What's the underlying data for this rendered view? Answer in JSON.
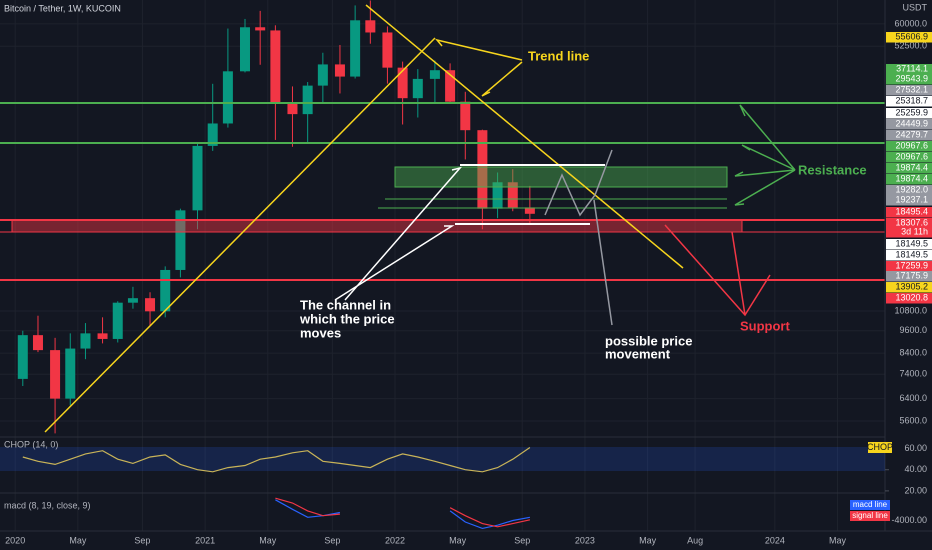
{
  "header": {
    "title": "Bitcoin / Tether, 1W, KUCOIN",
    "currency": "USDT"
  },
  "chart_data": {
    "type": "candlestick",
    "log_scale": true,
    "grid": true,
    "up_color": "#089981",
    "down_color": "#f23645",
    "x": [
      2020.04,
      2020.12,
      2020.21,
      2020.29,
      2020.37,
      2020.46,
      2020.54,
      2020.62,
      2020.71,
      2020.79,
      2020.87,
      2020.96,
      2021.04,
      2021.12,
      2021.21,
      2021.29,
      2021.37,
      2021.46,
      2021.54,
      2021.62,
      2021.71,
      2021.79,
      2021.87,
      2021.96,
      2022.04,
      2022.12,
      2022.21,
      2022.29,
      2022.37,
      2022.46,
      2022.54,
      2022.62,
      2022.71
    ],
    "open": [
      7200,
      9350,
      8550,
      6400,
      8630,
      9450,
      9140,
      11350,
      11660,
      10780,
      13800,
      19700,
      28950,
      33100,
      45200,
      58800,
      57700,
      37300,
      35000,
      41500,
      47100,
      43800,
      61300,
      57000,
      46200,
      38500,
      43200,
      45500,
      37700,
      31800,
      19900,
      23300,
      20050
    ],
    "high": [
      9600,
      10500,
      9200,
      9450,
      10050,
      10400,
      11450,
      12480,
      12080,
      14100,
      19900,
      29300,
      41950,
      58350,
      61800,
      64850,
      59500,
      41300,
      42400,
      50500,
      52900,
      67000,
      69000,
      59100,
      47900,
      45800,
      48200,
      47400,
      40000,
      31900,
      24700,
      25200,
      22800
    ],
    "low": [
      6900,
      8450,
      5200,
      6150,
      8100,
      8900,
      8950,
      10950,
      9900,
      10400,
      13200,
      17600,
      28100,
      32300,
      44900,
      47000,
      30000,
      28800,
      29300,
      37400,
      39600,
      43300,
      53300,
      42000,
      32900,
      34300,
      37200,
      37600,
      26700,
      17600,
      18800,
      19600,
      18150
    ],
    "close": [
      9350,
      8550,
      6400,
      8630,
      9450,
      9140,
      11350,
      11660,
      10780,
      13800,
      19700,
      28950,
      33100,
      45200,
      58800,
      57700,
      37300,
      35000,
      41500,
      47100,
      43800,
      61300,
      57000,
      46200,
      38500,
      43200,
      45500,
      37700,
      31800,
      19900,
      23300,
      20050,
      19300
    ],
    "xlim": [
      2019.92,
      2024.58
    ],
    "xticks": [
      2020,
      {
        "value": 2020.33,
        "label": "May"
      },
      {
        "value": 2020.67,
        "label": "Sep"
      },
      2021,
      {
        "value": 2021.33,
        "label": "May"
      },
      {
        "value": 2021.67,
        "label": "Sep"
      },
      2022,
      {
        "value": 2022.33,
        "label": "May"
      },
      {
        "value": 2022.67,
        "label": "Sep"
      },
      2023,
      {
        "value": 2023.33,
        "label": "May"
      },
      {
        "value": 2023.58,
        "label": "Aug"
      },
      2024,
      {
        "value": 2024.33,
        "label": "May"
      }
    ],
    "ylim": [
      5150,
      69200
    ],
    "yticks": [
      {
        "value": 60000,
        "label": "60000.0"
      },
      {
        "value": 52500,
        "label": "52500.0"
      },
      {
        "value": 10800,
        "label": "10800.0"
      },
      {
        "value": 9600,
        "label": "9600.0"
      },
      {
        "value": 8400,
        "label": "8400.0"
      },
      {
        "value": 7400,
        "label": "7400.0"
      },
      {
        "value": 6400,
        "label": "6400.0"
      },
      {
        "value": 5600,
        "label": "5600.0"
      }
    ],
    "price_labels": [
      {
        "value": 55606.9,
        "label": "55606.9",
        "color": "#f7d51d"
      },
      {
        "value": 37114.1,
        "label": "37114.1",
        "color": "#4caf50"
      },
      {
        "value": 29543.9,
        "label": "29543.9",
        "color": "#4caf50"
      },
      {
        "value": 27532.1,
        "label": "27532.1",
        "color": "#9598a1"
      },
      {
        "value": 25318.7,
        "label": "25318.7",
        "color": "#ffffff"
      },
      {
        "value": 25259.9,
        "label": "25259.9",
        "color": "#ffffff"
      },
      {
        "value": 24449.9,
        "label": "24449.9",
        "color": "#9598a1"
      },
      {
        "value": 24279.7,
        "label": "24279.7",
        "color": "#9598a1"
      },
      {
        "value": 20967.6,
        "label": "20967.6",
        "color": "#4caf50"
      },
      {
        "value": 20967.6,
        "label": "20967.6",
        "color": "#4caf50"
      },
      {
        "value": 19874.4,
        "label": "19874.4",
        "color": "#4caf50"
      },
      {
        "value": 19874.4,
        "label": "19874.4",
        "color": "#4caf50"
      },
      {
        "value": 19282.0,
        "label": "19282.0",
        "color": "#9598a1"
      },
      {
        "value": 19237.1,
        "label": "19237.1",
        "color": "#9598a1"
      },
      {
        "value": 18495.4,
        "label": "18495.4",
        "color": "#f23645"
      },
      {
        "value": 18307.6,
        "label": "18307.6",
        "color": "#f23645"
      },
      {
        "label": "3d 11h",
        "color": "#f23645"
      },
      {
        "value": 18149.5,
        "label": "18149.5",
        "color": "#ffffff"
      },
      {
        "value": 18149.5,
        "label": "18149.5",
        "color": "#ffffff"
      },
      {
        "value": 17259.9,
        "label": "17259.9",
        "color": "#f23645"
      },
      {
        "value": 17175.9,
        "label": "17175.9",
        "color": "#9598a1"
      },
      {
        "value": 13905.2,
        "label": "13905.2",
        "color": "#f7d51d"
      },
      {
        "value": 13020.8,
        "label": "13020.8",
        "color": "#f23645"
      }
    ]
  },
  "chop": {
    "title": "CHOP (14, 0)",
    "badge": "CHOP",
    "color": "#c9b458",
    "values": [
      52,
      48,
      45,
      50,
      55,
      58,
      50,
      46,
      52,
      54,
      45,
      40,
      38,
      42,
      44,
      50,
      52,
      56,
      58,
      48,
      46,
      44,
      42,
      50,
      55,
      52,
      48,
      44,
      40,
      38,
      42,
      50,
      61
    ],
    "ylim": [
      18,
      70
    ],
    "yticks": [
      {
        "value": 60,
        "label": "60.00"
      },
      {
        "value": 40,
        "label": "40.00"
      },
      {
        "value": 20,
        "label": "20.00"
      }
    ]
  },
  "macd": {
    "title": "macd (8, 19, close, 9)",
    "ylim": [
      -7000,
      4000
    ],
    "yticks": [
      {
        "value": -4000,
        "label": "-4000.00"
      }
    ],
    "series": [
      {
        "name": "macd line",
        "color": "#2962ff",
        "values": [
          null,
          null,
          null,
          null,
          null,
          null,
          null,
          null,
          null,
          null,
          null,
          null,
          null,
          null,
          null,
          null,
          2500,
          -500,
          -3000,
          -2500,
          -1500,
          null,
          null,
          null,
          null,
          null,
          null,
          -1000,
          -4500,
          -6500,
          -5500,
          -4000,
          -3000
        ]
      },
      {
        "name": "signal line",
        "color": "#f23645",
        "values": [
          null,
          null,
          null,
          null,
          null,
          null,
          null,
          null,
          null,
          null,
          null,
          null,
          null,
          null,
          null,
          null,
          3000,
          1500,
          -1000,
          -2500,
          -2000,
          null,
          null,
          null,
          null,
          null,
          null,
          0,
          -2500,
          -5000,
          -6000,
          -5000,
          -3800
        ]
      }
    ]
  },
  "annotations": {
    "trend": "Trend line",
    "resistance": "Resistance",
    "support": "Support",
    "channel": [
      "The channel in",
      "which the price",
      "moves"
    ],
    "possible": [
      "possible price",
      "movement"
    ]
  }
}
